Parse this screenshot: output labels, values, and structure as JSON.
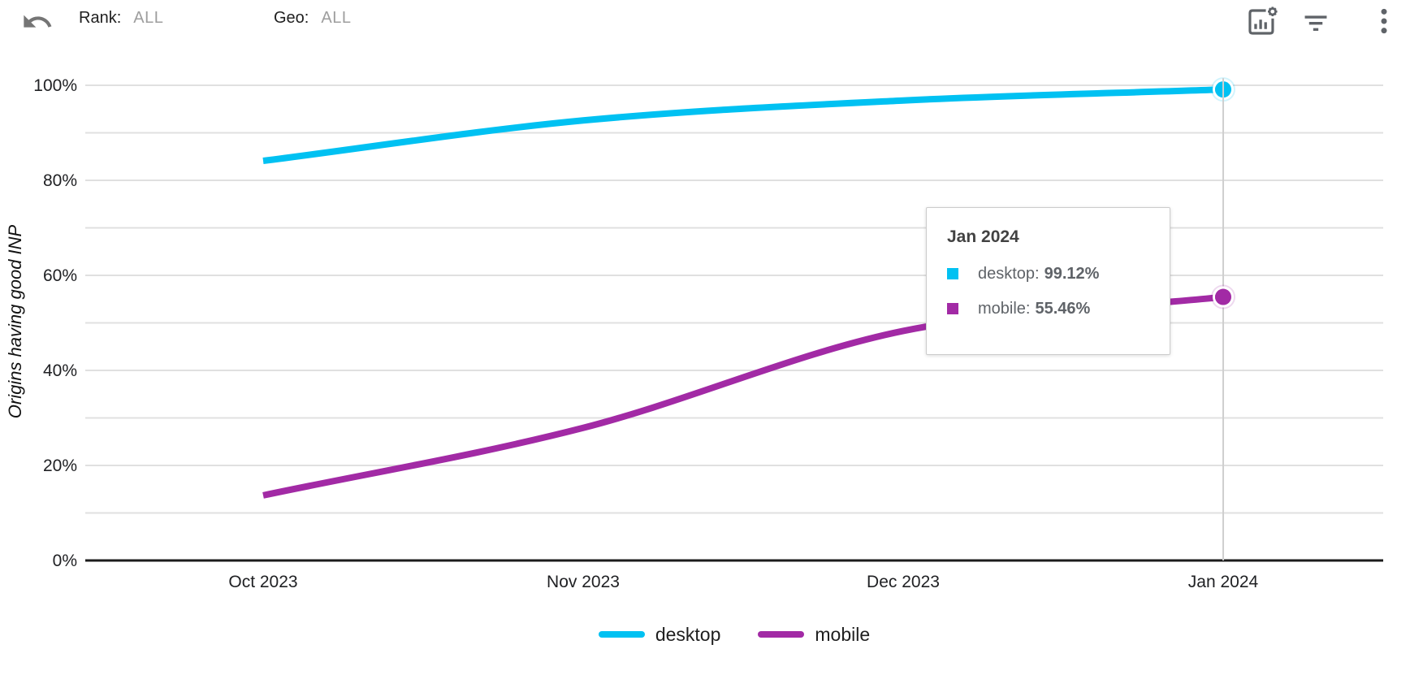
{
  "header": {
    "undo_icon": "undo-icon",
    "rank_label": "Rank:",
    "rank_value": "ALL",
    "geo_label": "Geo:",
    "geo_value": "ALL",
    "action_icons": [
      "chart-settings-icon",
      "filter-icon",
      "more-options-icon"
    ]
  },
  "chart_data": {
    "type": "line",
    "title": "",
    "xlabel": "",
    "ylabel": "Origins having good INP",
    "categories": [
      "Oct 2023",
      "Nov 2023",
      "Dec 2023",
      "Jan 2024"
    ],
    "y_ticks": [
      "100%",
      "80%",
      "60%",
      "40%",
      "20%",
      "0%"
    ],
    "y_tick_values": [
      100,
      80,
      60,
      40,
      20,
      0
    ],
    "ylim": [
      0,
      100
    ],
    "grid": true,
    "legend_position": "bottom",
    "series": [
      {
        "name": "desktop",
        "color": "#00c1f2",
        "values": [
          84.1,
          92.6,
          96.8,
          99.12
        ]
      },
      {
        "name": "mobile",
        "color": "#a22aa5",
        "values": [
          13.7,
          27.9,
          48.3,
          55.46
        ]
      }
    ],
    "highlighted_category": "Jan 2024"
  },
  "tooltip": {
    "title": "Jan 2024",
    "rows": [
      {
        "series": "desktop",
        "label": "desktop:",
        "value": "99.12%",
        "color": "#00c1f2"
      },
      {
        "series": "mobile",
        "label": "mobile:",
        "value": "55.46%",
        "color": "#a22aa5"
      }
    ]
  },
  "colors": {
    "desktop": "#00c1f2",
    "mobile": "#a22aa5",
    "gridline": "#e0e0e0",
    "axis": "#1b1b1b",
    "crosshair": "#cfcfcf"
  }
}
